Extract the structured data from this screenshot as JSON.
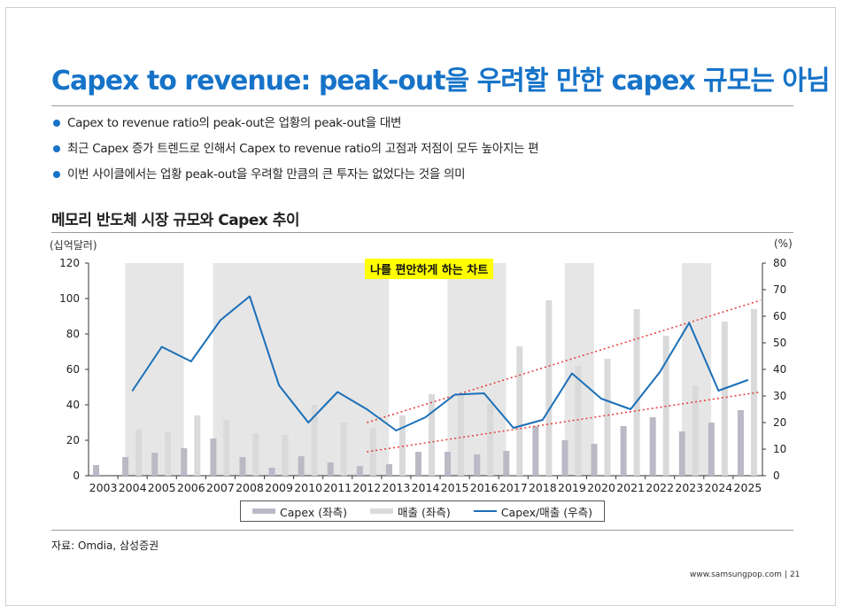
{
  "page": {
    "title": "Capex to revenue: peak-out을 우려할 만한 capex 규모는 아님",
    "bullets": [
      "Capex to revenue ratio의 peak-out은 업황의 peak-out을 대변",
      "최근 Capex 증가 트렌드로 인해서 Capex to revenue ratio의 고점과 저점이 모두 높아지는 편",
      "이번 사이클에서는 업황 peak-out을 우려할 만큼의 큰 투자는 없었다는 것을 의미"
    ],
    "chart_title": "메모리 반도체 시장 규모와 Capex 추이",
    "source": "자료: Omdia, 삼성증권",
    "footer_url": "www.samsungpop.com",
    "footer_sep": "|",
    "page_number": "21"
  },
  "chart_data": {
    "type": "bar",
    "title": "메모리 반도체 시장 규모와 Capex 추이",
    "annotation": "나를 편안하게 하는 차트",
    "categories": [
      "2003",
      "2004",
      "2005",
      "2006",
      "2007",
      "2008",
      "2009",
      "2010",
      "2011",
      "2012",
      "2013",
      "2014",
      "2015",
      "2016",
      "2017",
      "2018",
      "2019",
      "2020",
      "2021",
      "2022",
      "2023",
      "2024",
      "2025"
    ],
    "left_axis": {
      "unit": "(십억달러)",
      "min": 0,
      "max": 120,
      "ticks": [
        0,
        20,
        40,
        60,
        80,
        100,
        120
      ]
    },
    "right_axis": {
      "unit": "(%)",
      "min": 0,
      "max": 80,
      "ticks": [
        0,
        10,
        20,
        30,
        40,
        50,
        60,
        70,
        80
      ]
    },
    "series": [
      {
        "name": "Capex (좌측)",
        "kind": "bar",
        "axis": "left",
        "color": "#babac6",
        "values": [
          6,
          10.5,
          13,
          15.5,
          21,
          10.5,
          4.5,
          11,
          7.5,
          5.5,
          6.5,
          13.5,
          13.5,
          12,
          14,
          28,
          20,
          18,
          28,
          33,
          25,
          30,
          37
        ]
      },
      {
        "name": "매출 (좌측)",
        "kind": "bar",
        "axis": "left",
        "color": "#dadada",
        "values": [
          null,
          26,
          25,
          34,
          31.5,
          24,
          23,
          40,
          30,
          27,
          34,
          46,
          46,
          41,
          73,
          99,
          62,
          66,
          94,
          79,
          51,
          87,
          94
        ]
      },
      {
        "name": "Capex/매출 (우측)",
        "kind": "line",
        "axis": "right",
        "color": "#1b6fb8",
        "values": [
          null,
          32,
          48.5,
          43,
          58.5,
          67.5,
          34,
          20,
          31.5,
          25,
          17,
          22,
          30.5,
          31,
          18,
          21,
          38.5,
          29,
          25,
          39,
          57.5,
          32,
          36
        ]
      }
    ],
    "shaded_periods": [
      [
        "2004",
        "2005"
      ],
      [
        "2007",
        "2009"
      ],
      [
        "2010",
        "2012"
      ],
      [
        "2015",
        "2016"
      ],
      [
        "2019",
        "2019"
      ],
      [
        "2023",
        "2023"
      ]
    ],
    "trend_lines": [
      {
        "from": [
          "2012",
          20
        ],
        "to": [
          "2025",
          66
        ],
        "axis": "right",
        "color": "#e53935",
        "style": "dotted"
      },
      {
        "from": [
          "2012",
          9
        ],
        "to": [
          "2025",
          31.5
        ],
        "axis": "right",
        "color": "#e53935",
        "style": "dotted"
      }
    ]
  }
}
